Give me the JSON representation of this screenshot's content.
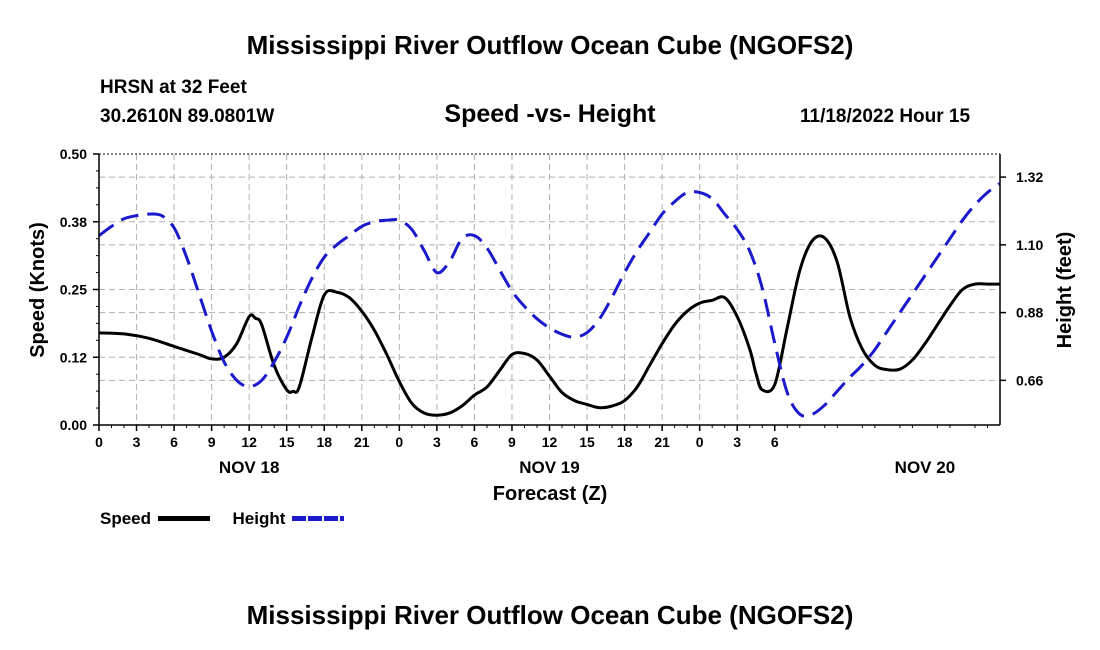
{
  "page_title": "Mississippi River Outflow Ocean Cube (NGOFS2)",
  "footer_title": "Mississippi River Outflow Ocean Cube (NGOFS2)",
  "station": {
    "name": "HRSN at 32 Feet",
    "coords": "30.2610N  89.0801W",
    "datetime": "11/18/2022 Hour 15"
  },
  "colors": {
    "speed": "#000000",
    "height": "#1a1acc",
    "grid": "#b0b0b0"
  },
  "chart_data": {
    "type": "line",
    "title": "Speed -vs- Height",
    "xlabel": "Forecast (Z)",
    "ylabel_left": "Speed (Knots)",
    "ylabel_right": "Height (feet)",
    "x_range_hours": [
      0,
      72
    ],
    "x_tick_step_hours": 3,
    "x_tick_labels": [
      "0",
      "3",
      "6",
      "9",
      "12",
      "15",
      "18",
      "21",
      "0",
      "3",
      "6",
      "9",
      "12",
      "15",
      "18",
      "21",
      "0",
      "3",
      "6"
    ],
    "date_labels": [
      {
        "label": "NOV 18",
        "hour": 12
      },
      {
        "label": "NOV 19",
        "hour": 36
      },
      {
        "label": "NOV 20",
        "hour": 66
      }
    ],
    "y_left": {
      "range": [
        0,
        0.5
      ],
      "ticks": [
        0.0,
        0.125,
        0.25,
        0.375,
        0.5
      ],
      "tick_labels": [
        "0.00",
        "0.12",
        "0.25",
        "0.38",
        "0.50"
      ]
    },
    "y_right": {
      "range": [
        0.515,
        1.395
      ],
      "ticks": [
        0.66,
        0.88,
        1.1,
        1.32
      ],
      "tick_labels": [
        "0.66",
        "0.88",
        "1.10",
        "1.32"
      ]
    },
    "grid": true,
    "series": [
      {
        "name": "Speed",
        "axis": "left",
        "style": "solid",
        "x": [
          0,
          2,
          4,
          6,
          8,
          9,
          10,
          11,
          12,
          12.5,
          13,
          14,
          15,
          15.5,
          16,
          17,
          18,
          19,
          20,
          21,
          22,
          23,
          24,
          25,
          26,
          27,
          28,
          29,
          30,
          31,
          32,
          33,
          34,
          35,
          36,
          37,
          38,
          39,
          40,
          41,
          42,
          43,
          44,
          45,
          46,
          47,
          48,
          49,
          50,
          51,
          52,
          52.5,
          53,
          54,
          55,
          56,
          57,
          58,
          59,
          60,
          61,
          62,
          63,
          64,
          65,
          66,
          67,
          68,
          69,
          70,
          71,
          72
        ],
        "values": [
          0.17,
          0.168,
          0.16,
          0.145,
          0.13,
          0.122,
          0.125,
          0.15,
          0.2,
          0.197,
          0.185,
          0.11,
          0.065,
          0.062,
          0.07,
          0.16,
          0.24,
          0.245,
          0.235,
          0.21,
          0.175,
          0.13,
          0.08,
          0.04,
          0.022,
          0.018,
          0.022,
          0.035,
          0.055,
          0.07,
          0.1,
          0.13,
          0.132,
          0.12,
          0.09,
          0.06,
          0.045,
          0.038,
          0.032,
          0.035,
          0.045,
          0.07,
          0.11,
          0.15,
          0.185,
          0.21,
          0.225,
          0.23,
          0.235,
          0.2,
          0.14,
          0.095,
          0.065,
          0.075,
          0.18,
          0.285,
          0.34,
          0.345,
          0.3,
          0.2,
          0.14,
          0.11,
          0.102,
          0.103,
          0.12,
          0.15,
          0.185,
          0.22,
          0.25,
          0.26,
          0.26,
          0.26
        ]
      },
      {
        "name": "Height",
        "axis": "right",
        "style": "dashed",
        "x": [
          0,
          1,
          2,
          3,
          4,
          5,
          6,
          7,
          8,
          9,
          10,
          11,
          12,
          13,
          14,
          15,
          16,
          17,
          18,
          19,
          20,
          21,
          22,
          23,
          24,
          25,
          26,
          27,
          28,
          29,
          30,
          31,
          32,
          33,
          34,
          35,
          36,
          37,
          38,
          39,
          40,
          41,
          42,
          43,
          44,
          45,
          46,
          47,
          48,
          49,
          50,
          51,
          52,
          53,
          54,
          55,
          56,
          57,
          58,
          59,
          60,
          61,
          62,
          63,
          64,
          65,
          66,
          67,
          68,
          69,
          70,
          71,
          72
        ],
        "values": [
          1.13,
          1.16,
          1.185,
          1.195,
          1.2,
          1.195,
          1.155,
          1.06,
          0.94,
          0.82,
          0.72,
          0.66,
          0.64,
          0.66,
          0.72,
          0.8,
          0.9,
          0.99,
          1.06,
          1.1,
          1.13,
          1.16,
          1.175,
          1.18,
          1.18,
          1.15,
          1.08,
          1.01,
          1.045,
          1.12,
          1.13,
          1.09,
          1.02,
          0.95,
          0.9,
          0.86,
          0.83,
          0.81,
          0.8,
          0.815,
          0.86,
          0.93,
          1.01,
          1.08,
          1.14,
          1.2,
          1.24,
          1.27,
          1.27,
          1.25,
          1.2,
          1.15,
          1.08,
          0.96,
          0.78,
          0.62,
          0.55,
          0.55,
          0.58,
          0.625,
          0.67,
          0.71,
          0.76,
          0.82,
          0.88,
          0.94,
          1.0,
          1.06,
          1.12,
          1.18,
          1.23,
          1.27,
          1.3
        ]
      }
    ]
  }
}
